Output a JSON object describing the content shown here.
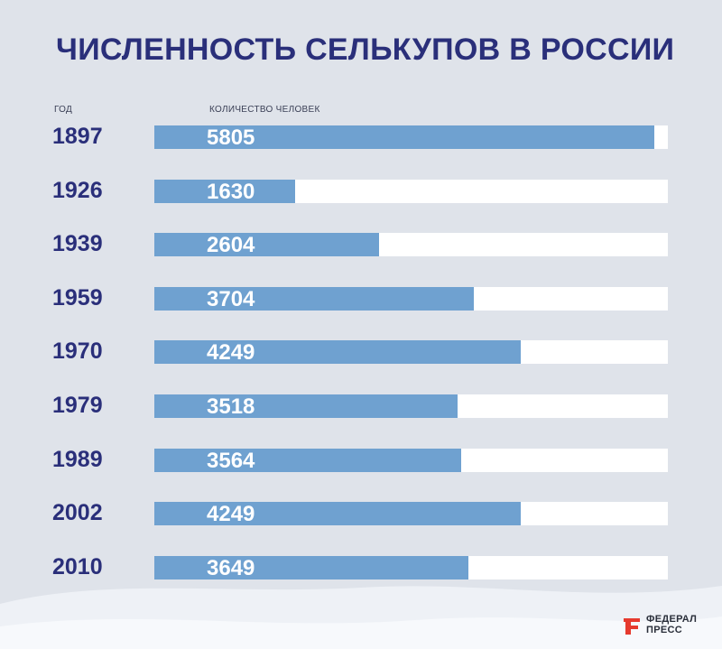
{
  "title": "ЧИСЛЕННОСТЬ СЕЛЬКУПОВ В РОССИИ",
  "header": {
    "year_label": "ГОД",
    "count_label": "КОЛИЧЕСТВО ЧЕЛОВЕК"
  },
  "logo": {
    "line1": "ФЕДЕРАЛ",
    "line2": "ПРЕСС",
    "mark_color": "#e63a2e"
  },
  "colors": {
    "bar": "#6fa1d0",
    "track": "#ffffff",
    "title": "#2a2f7a"
  },
  "chart_data": {
    "type": "bar",
    "orientation": "horizontal",
    "categories": [
      "1897",
      "1926",
      "1939",
      "1959",
      "1970",
      "1979",
      "1989",
      "2002",
      "2010"
    ],
    "values": [
      5805,
      1630,
      2604,
      3704,
      4249,
      3518,
      3564,
      4249,
      3649
    ],
    "value_labels": [
      "5805",
      "1630",
      "2604",
      "3704",
      "4249",
      "3518",
      "3564",
      "4249",
      "3649"
    ],
    "title": "ЧИСЛЕННОСТЬ СЕЛЬКУПОВ В РОССИИ",
    "xlabel": "КОЛИЧЕСТВО ЧЕЛОВЕК",
    "ylabel": "ГОД",
    "xlim": [
      0,
      5960
    ],
    "grid": false
  }
}
